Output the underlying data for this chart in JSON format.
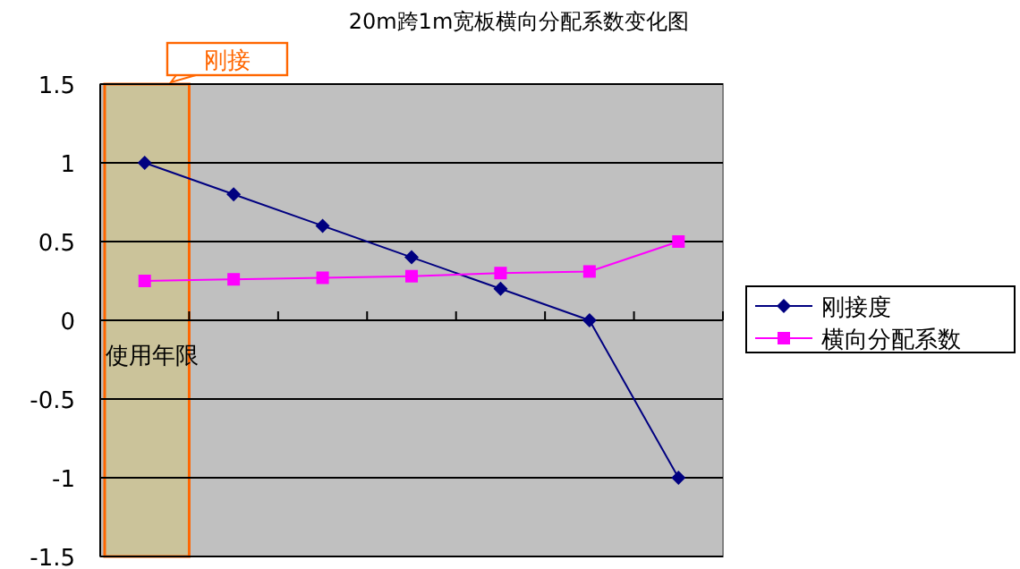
{
  "chart_data": {
    "type": "line",
    "title": "20m跨1m宽板横向分配系数变化图",
    "xlabel": "使用年限",
    "categories": [
      null,
      null,
      null,
      null,
      null,
      null,
      null
    ],
    "series": [
      {
        "name": "刚接度",
        "color": "#000080",
        "marker": "diamond",
        "values": [
          1,
          0.8,
          0.6,
          0.4,
          0.2,
          0,
          -1
        ]
      },
      {
        "name": "横向分配系数",
        "color": "#ff00ff",
        "marker": "square",
        "values": [
          0.25,
          0.26,
          0.27,
          0.28,
          0.3,
          0.31,
          0.5
        ]
      }
    ],
    "ylim": [
      -1.5,
      1.5
    ],
    "yticks": [
      -1.5,
      -1,
      -0.5,
      0,
      0.5,
      1,
      1.5
    ],
    "annotations": [
      "刚接"
    ],
    "grid": "y",
    "legend": "right",
    "line_style": "solid"
  }
}
